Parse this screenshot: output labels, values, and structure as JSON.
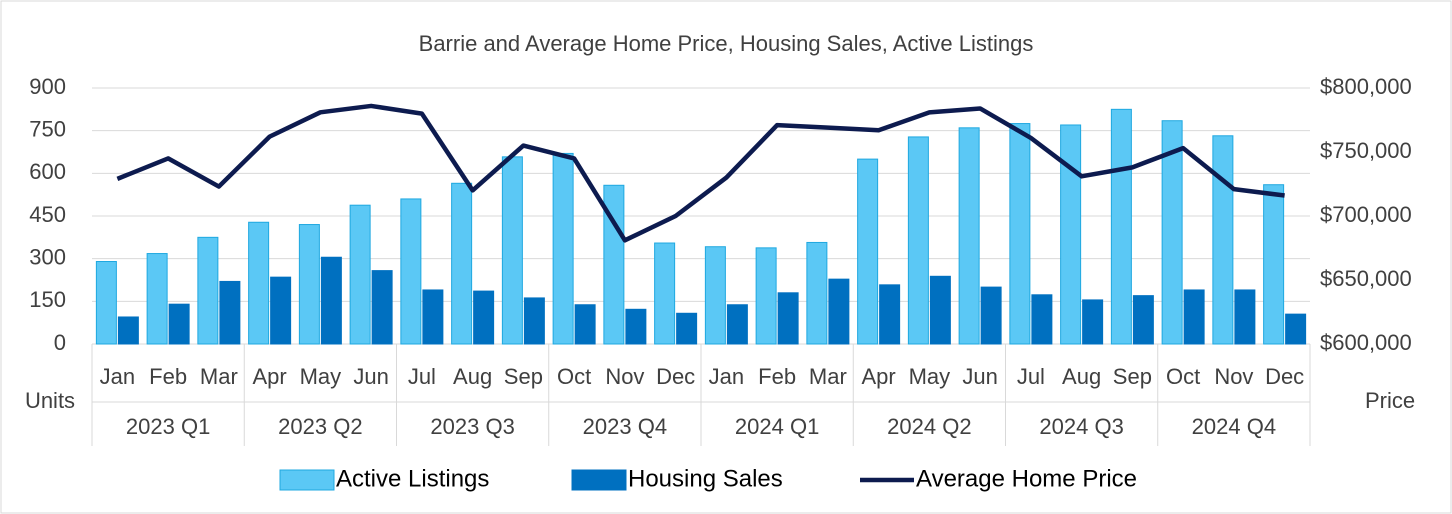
{
  "chart_data": {
    "type": "bar-line",
    "title": "Barrie and Average Home Price, Housing Sales, Active Listings",
    "y_label": "Units",
    "y2_label": "Price",
    "categories": [
      "Jan",
      "Feb",
      "Mar",
      "Apr",
      "May",
      "Jun",
      "Jul",
      "Aug",
      "Sep",
      "Oct",
      "Nov",
      "Dec",
      "Jan",
      "Feb",
      "Mar",
      "Apr",
      "May",
      "Jun",
      "Jul",
      "Aug",
      "Sep",
      "Oct",
      "Nov",
      "Dec"
    ],
    "groups": [
      "2023 Q1",
      "2023 Q2",
      "2023 Q3",
      "2023 Q4",
      "2024 Q1",
      "2024 Q2",
      "2024 Q3",
      "2024 Q4"
    ],
    "series": [
      {
        "name": "Active Listings",
        "type": "bar",
        "color": "#5bc8f5",
        "values": [
          290,
          318,
          375,
          428,
          420,
          488,
          510,
          565,
          658,
          670,
          558,
          355,
          342,
          338,
          357,
          650,
          728,
          760,
          775,
          770,
          825,
          785,
          732,
          560
        ]
      },
      {
        "name": "Housing Sales",
        "type": "bar",
        "color": "#0070c0",
        "values": [
          95,
          140,
          220,
          235,
          305,
          258,
          190,
          186,
          162,
          138,
          122,
          108,
          138,
          180,
          228,
          208,
          238,
          200,
          173,
          155,
          170,
          190,
          190,
          105
        ]
      },
      {
        "name": "Average Home Price",
        "type": "line",
        "axis": "y2",
        "color": "#0d1b4f",
        "values": [
          729000,
          745000,
          723000,
          762000,
          781000,
          786000,
          780000,
          720000,
          755000,
          745000,
          681000,
          700000,
          730000,
          771000,
          769000,
          767000,
          781000,
          784000,
          761000,
          731000,
          738000,
          753000,
          721000,
          716000
        ]
      }
    ],
    "ylim": [
      0,
      900
    ],
    "yticks": [
      0,
      150,
      300,
      450,
      600,
      750,
      900
    ],
    "y2lim": [
      600000,
      800000
    ],
    "y2ticks": [
      {
        "value": 600000,
        "label": "$600,000"
      },
      {
        "value": 650000,
        "label": "$650,000"
      },
      {
        "value": 700000,
        "label": "$700,000"
      },
      {
        "value": 750000,
        "label": "$750,000"
      },
      {
        "value": 800000,
        "label": "$800,000"
      }
    ],
    "grid": true,
    "legend": "bottom"
  }
}
